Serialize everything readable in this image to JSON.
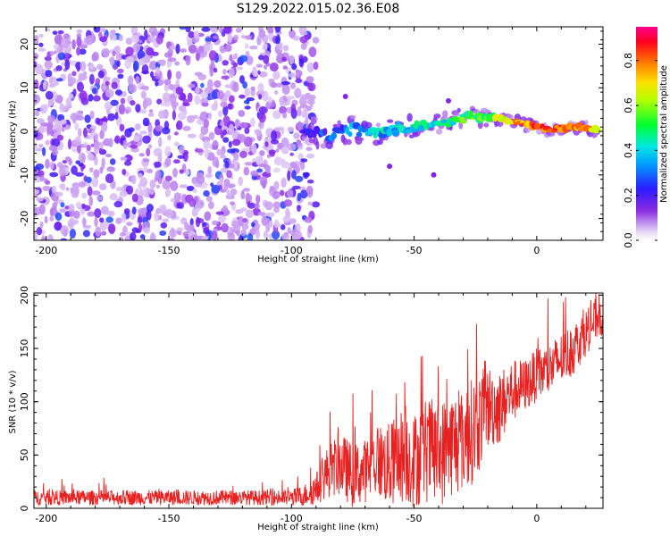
{
  "title": "S129.2022.015.02.36.E08",
  "chart_data": [
    {
      "type": "heatmap",
      "xlabel": "Height of straight line (km)",
      "ylabel": "Frequency (Hz)",
      "xlim": [
        -205,
        27
      ],
      "ylim": [
        -25,
        24
      ],
      "xticks": [
        -200,
        -150,
        -100,
        -50,
        0
      ],
      "yticks": [
        -20,
        -10,
        0,
        10,
        20
      ],
      "xtick_labels": [
        "-200",
        "-150",
        "-100",
        "-50",
        "0"
      ],
      "ytick_labels": [
        "-20",
        "-10",
        "0",
        "10",
        "20"
      ],
      "noise_region": {
        "x": [
          -205,
          -90
        ],
        "frequency": [
          -25,
          24
        ],
        "amplitude": [
          0.05,
          0.3
        ]
      },
      "signal_track": [
        {
          "x": -95,
          "frequency": 0.0,
          "amplitude": 0.2
        },
        {
          "x": -85,
          "frequency": -1.0,
          "amplitude": 0.35
        },
        {
          "x": -75,
          "frequency": 0.5,
          "amplitude": 0.4
        },
        {
          "x": -65,
          "frequency": 0.0,
          "amplitude": 0.45
        },
        {
          "x": -55,
          "frequency": 0.5,
          "amplitude": 0.45
        },
        {
          "x": -45,
          "frequency": 1.5,
          "amplitude": 0.5
        },
        {
          "x": -35,
          "frequency": 2.5,
          "amplitude": 0.55
        },
        {
          "x": -25,
          "frequency": 3.5,
          "amplitude": 0.6
        },
        {
          "x": -15,
          "frequency": 3.0,
          "amplitude": 0.7
        },
        {
          "x": -5,
          "frequency": 1.5,
          "amplitude": 0.85
        },
        {
          "x": 5,
          "frequency": 0.5,
          "amplitude": 0.9
        },
        {
          "x": 15,
          "frequency": 1.0,
          "amplitude": 0.85
        },
        {
          "x": 25,
          "frequency": 0.5,
          "amplitude": 0.8
        }
      ],
      "colorbar": {
        "label": "Normalized spectral amplitude",
        "range": [
          0.0,
          0.95
        ],
        "ticks": [
          0.0,
          0.2,
          0.4,
          0.6,
          0.8
        ],
        "tick_labels": [
          "0.0",
          "0.2",
          "0.4",
          "0.6",
          "0.8"
        ],
        "colors": [
          "#ffffff",
          "#d9c3f2",
          "#7a00ff",
          "#0030ff",
          "#00e6ff",
          "#00ff44",
          "#e8ff00",
          "#ff8800",
          "#ff0000",
          "#ff0090"
        ]
      }
    },
    {
      "type": "line",
      "xlabel": "Height of straight line (km)",
      "ylabel": "SNR (10 * v/v)",
      "xlim": [
        -205,
        27
      ],
      "ylim": [
        0,
        202
      ],
      "xticks": [
        -200,
        -150,
        -100,
        -50,
        0
      ],
      "yticks": [
        0,
        50,
        100,
        150,
        200
      ],
      "xtick_labels": [
        "-200",
        "-150",
        "-100",
        "-50",
        "0"
      ],
      "ytick_labels": [
        "0",
        "50",
        "100",
        "150",
        "200"
      ],
      "series": [
        {
          "name": "SNR",
          "color": "#e82020",
          "x": [
            -205,
            -200,
            -190,
            -180,
            -170,
            -160,
            -150,
            -140,
            -130,
            -120,
            -110,
            -100,
            -95,
            -90,
            -85,
            -80,
            -75,
            -70,
            -65,
            -60,
            -55,
            -50,
            -45,
            -40,
            -35,
            -30,
            -25,
            -20,
            -15,
            -10,
            -5,
            0,
            5,
            10,
            15,
            20,
            25,
            27
          ],
          "y": [
            10,
            10,
            10,
            10,
            10,
            10,
            10,
            10,
            10,
            10,
            10,
            10,
            12,
            18,
            35,
            42,
            30,
            35,
            45,
            40,
            50,
            45,
            55,
            50,
            60,
            65,
            75,
            95,
            95,
            110,
            115,
            125,
            130,
            140,
            150,
            165,
            180,
            180
          ],
          "spread": [
            7,
            7,
            7,
            7,
            7,
            7,
            7,
            7,
            7,
            7,
            7,
            8,
            10,
            15,
            25,
            30,
            30,
            30,
            35,
            40,
            45,
            45,
            50,
            50,
            50,
            50,
            50,
            40,
            35,
            30,
            25,
            25,
            25,
            25,
            25,
            22,
            20,
            20
          ]
        }
      ]
    }
  ]
}
